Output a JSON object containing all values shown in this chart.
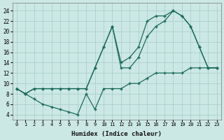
{
  "xlabel": "Humidex (Indice chaleur)",
  "bg_color": "#cce8e4",
  "grid_color": "#aacfcb",
  "line_color": "#1a6b5a",
  "xlim": [
    -0.5,
    23.5
  ],
  "ylim": [
    3.0,
    25.5
  ],
  "xticks": [
    0,
    1,
    2,
    3,
    4,
    5,
    6,
    7,
    8,
    9,
    10,
    11,
    12,
    13,
    14,
    15,
    16,
    17,
    18,
    19,
    20,
    21,
    22,
    23
  ],
  "yticks": [
    4,
    6,
    8,
    10,
    12,
    14,
    16,
    18,
    20,
    22,
    24
  ],
  "curve_top_x": [
    0,
    1,
    2,
    3,
    4,
    5,
    6,
    7,
    8,
    9,
    10,
    11,
    12,
    13,
    14,
    15,
    16,
    17,
    18,
    19,
    20,
    21,
    22,
    23
  ],
  "curve_top_y": [
    9,
    8,
    9,
    9,
    9,
    9,
    9,
    9,
    9,
    13,
    17,
    21,
    13,
    13,
    15,
    19,
    21,
    22,
    24,
    23,
    21,
    17,
    13,
    13
  ],
  "curve_mid_x": [
    0,
    1,
    2,
    3,
    4,
    5,
    6,
    7,
    8,
    9,
    10,
    11,
    12,
    13,
    14,
    15,
    16,
    17,
    18,
    19,
    20,
    21,
    22,
    23
  ],
  "curve_mid_y": [
    9,
    8,
    9,
    9,
    9,
    9,
    9,
    9,
    9,
    13,
    17,
    21,
    14,
    15,
    17,
    22,
    23,
    23,
    24,
    23,
    21,
    17,
    13,
    13
  ],
  "curve_low_x": [
    0,
    1,
    2,
    3,
    4,
    5,
    6,
    7,
    8,
    9,
    10,
    11,
    12,
    13,
    14,
    15,
    16,
    17,
    18,
    19,
    20,
    21,
    22,
    23
  ],
  "curve_low_y": [
    9,
    8,
    7,
    6,
    5.5,
    5,
    4.5,
    4,
    8,
    5,
    9,
    9,
    9,
    10,
    10,
    11,
    12,
    12,
    12,
    12,
    13,
    13,
    13,
    13
  ],
  "marker_size": 3.5,
  "linewidth": 0.9
}
